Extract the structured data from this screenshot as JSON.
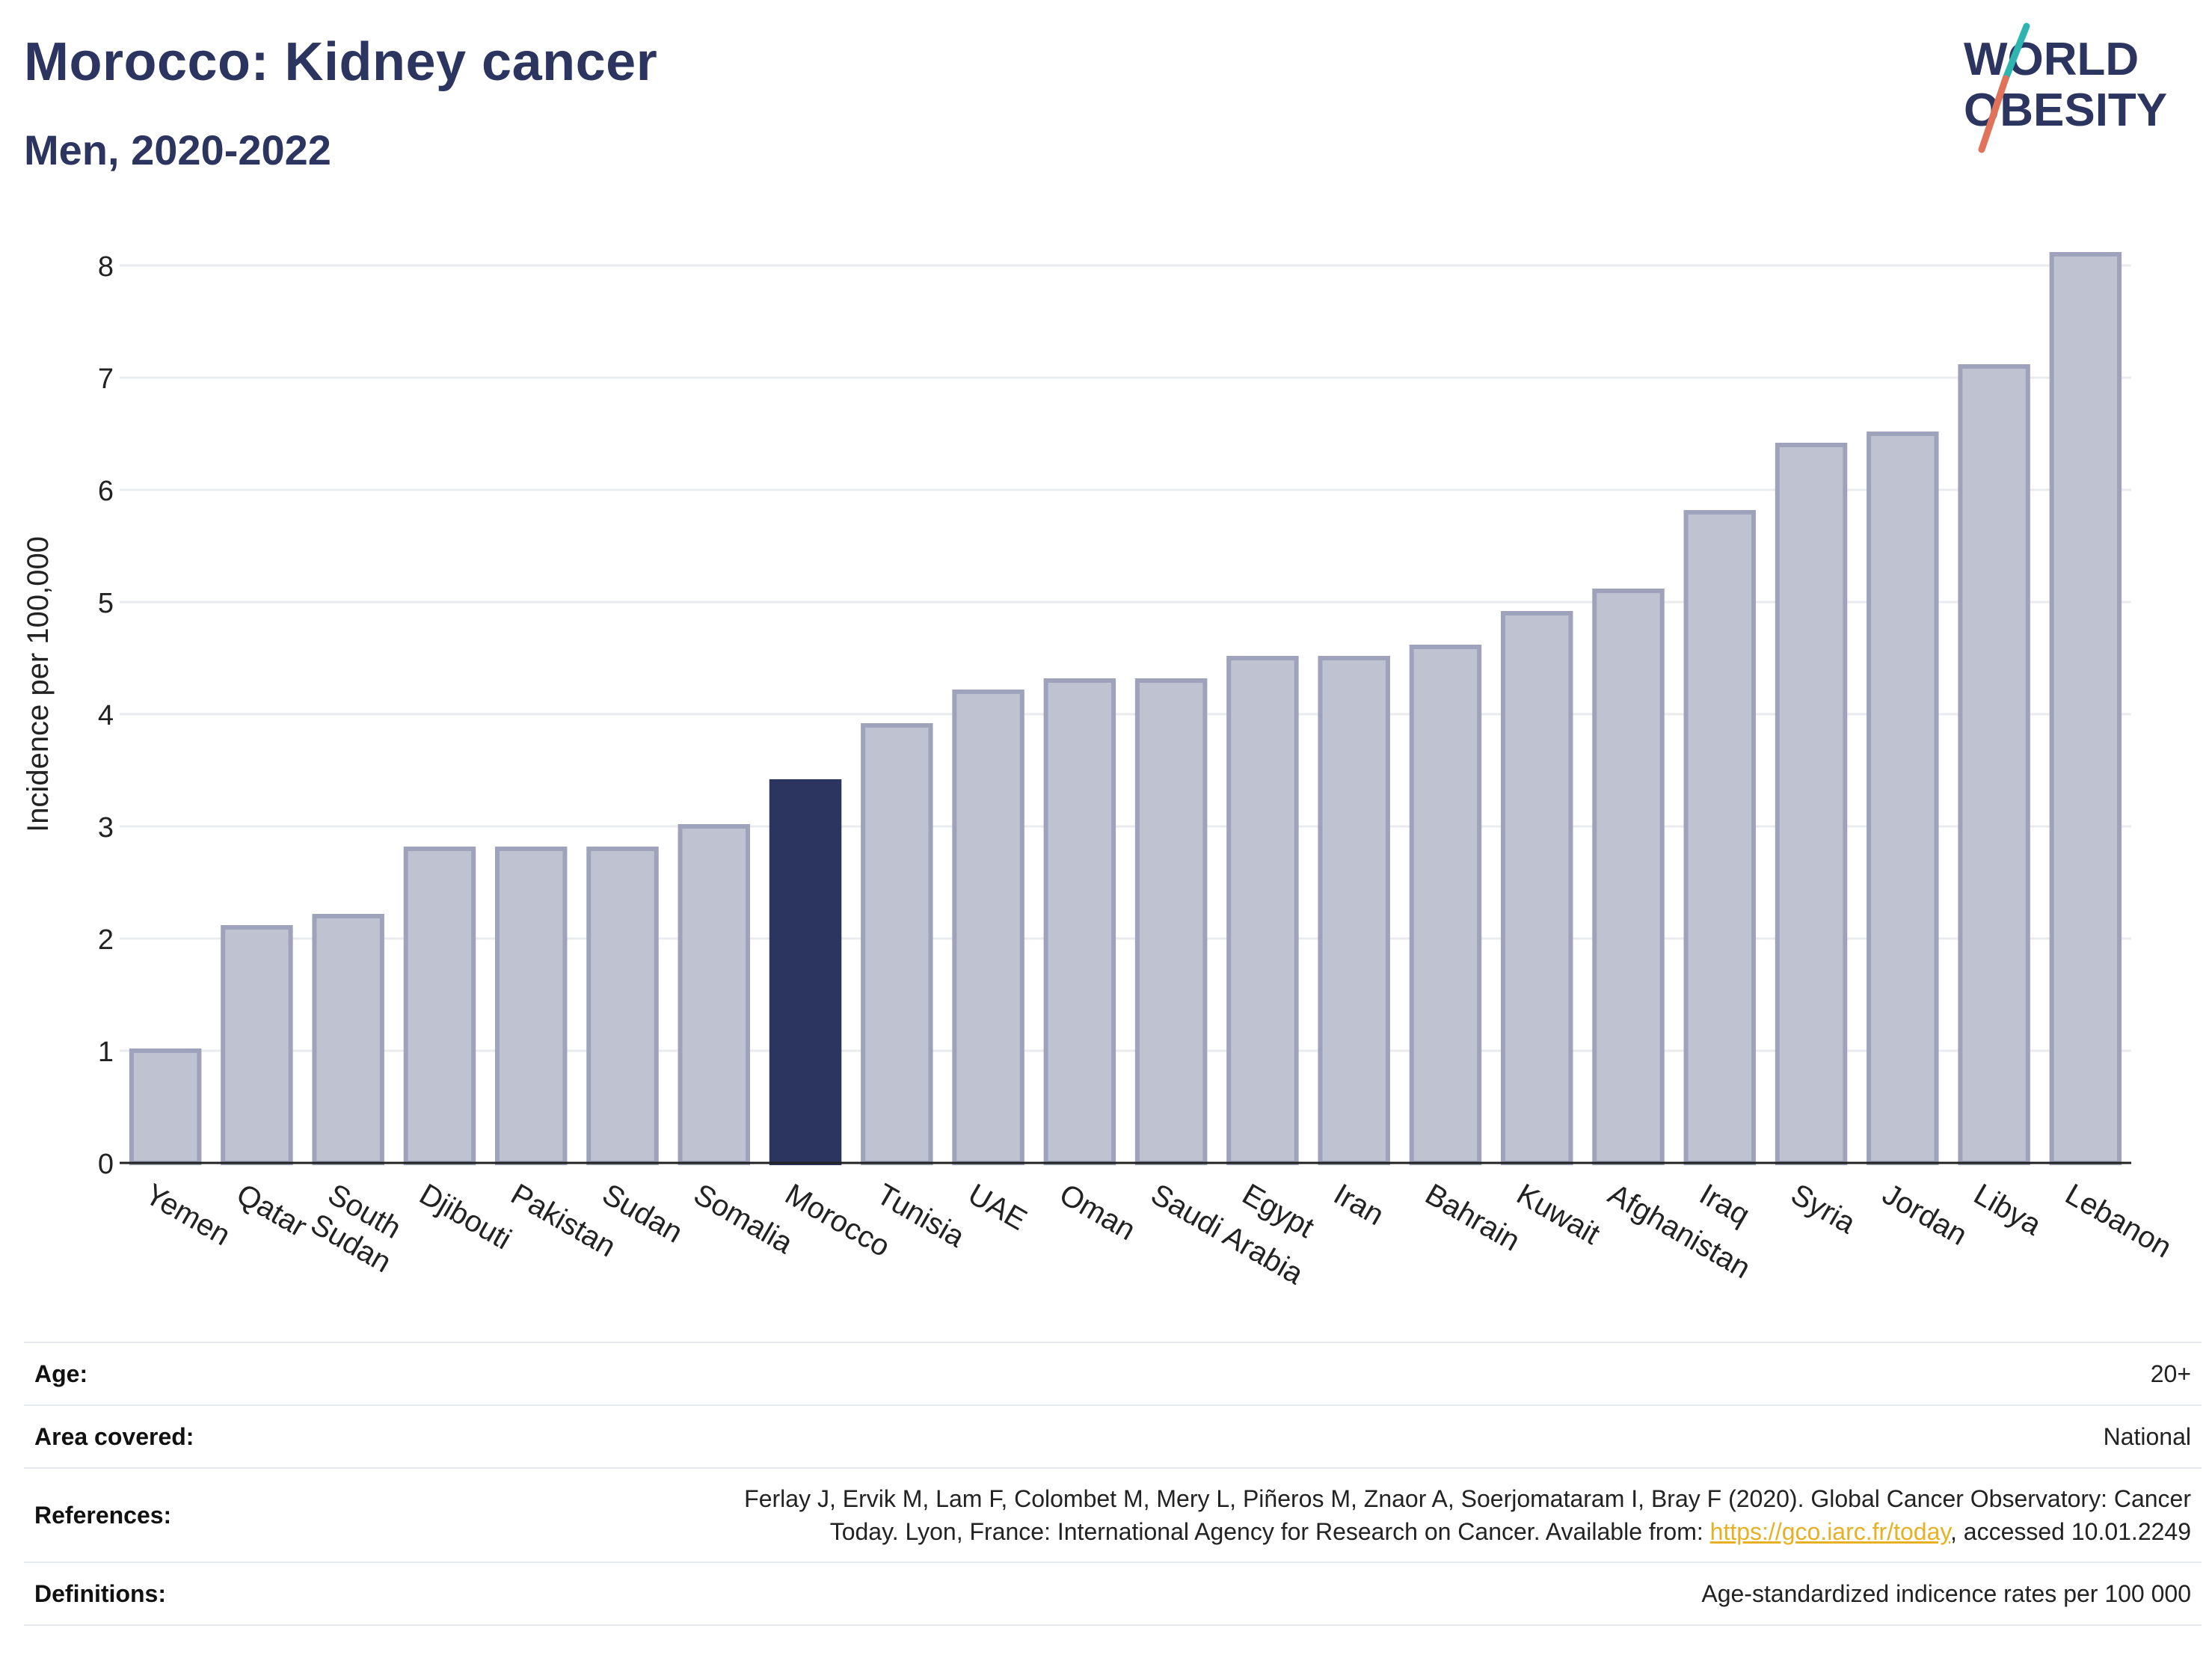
{
  "header": {
    "title": "Morocco: Kidney cancer",
    "subtitle": "Men, 2020-2022"
  },
  "logo": {
    "text_line1": "WORLD",
    "text_line2": "OBESITY",
    "colors": {
      "text": "#2b3560",
      "slash_top": "#2fb5b0",
      "slash_bottom": "#e0735a"
    }
  },
  "chart_data": {
    "type": "bar",
    "ylabel": "Incidence per 100,000",
    "ylim": [
      0,
      8.4
    ],
    "yticks": [
      0,
      1,
      2,
      3,
      4,
      5,
      6,
      7,
      8
    ],
    "grid": true,
    "highlight": "Morocco",
    "colors": {
      "bar": "#bfc2d0",
      "bar_border": "#9ea3bb",
      "highlight": "#2b3560",
      "grid": "#e9ebef"
    },
    "categories": [
      "Yemen",
      "Qatar",
      "South Sudan",
      "Djibouti",
      "Pakistan",
      "Sudan",
      "Somalia",
      "Morocco",
      "Tunisia",
      "UAE",
      "Oman",
      "Saudi Arabia",
      "Egypt",
      "Iran",
      "Bahrain",
      "Kuwait",
      "Afghanistan",
      "Iraq",
      "Syria",
      "Jordan",
      "Libya",
      "Lebanon"
    ],
    "values": [
      1.0,
      2.1,
      2.2,
      2.8,
      2.8,
      2.8,
      3.0,
      3.4,
      3.9,
      4.2,
      4.3,
      4.3,
      4.5,
      4.5,
      4.6,
      4.9,
      5.1,
      5.8,
      6.4,
      6.5,
      7.1,
      8.1
    ]
  },
  "info": {
    "age_label": "Age:",
    "age_value": "20+",
    "area_label": "Area covered:",
    "area_value": "National",
    "references_label": "References:",
    "references_line1": "Ferlay J, Ervik M, Lam F, Colombet M, Mery L, Piñeros M, Znaor A, Soerjomataram I, Bray F (2020). Global Cancer Observatory: Cancer",
    "references_line2_pre": "Today. Lyon, France: International Agency for Research on Cancer. Available from: ",
    "references_link": "https://gco.iarc.fr/today",
    "references_line2_post": ", accessed 10.01.2249",
    "definitions_label": "Definitions:",
    "definitions_value": "Age-standardized indicence rates per 100 000"
  }
}
